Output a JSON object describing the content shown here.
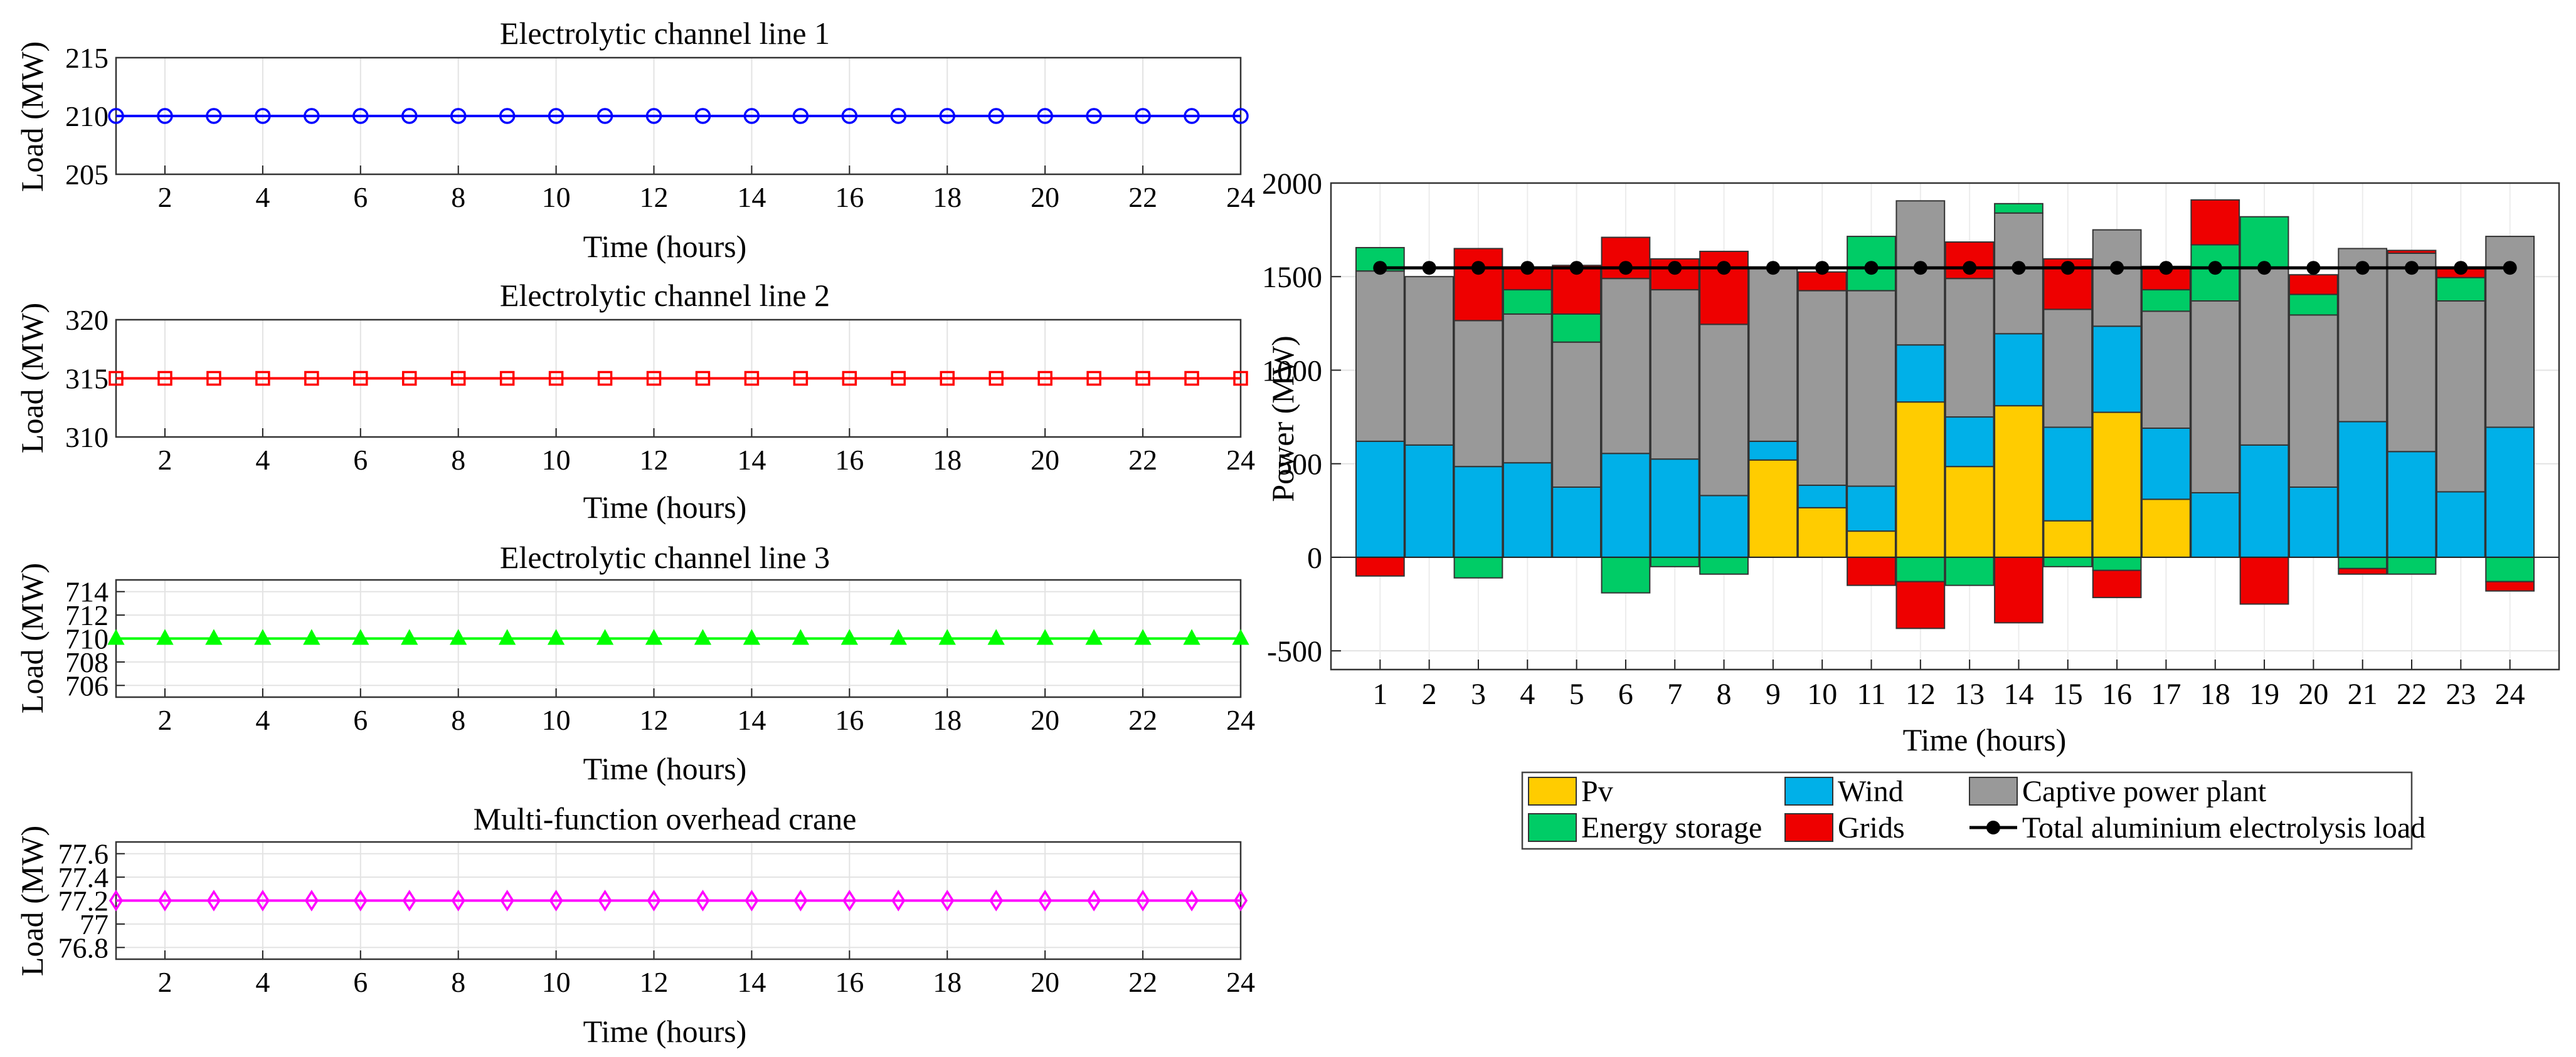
{
  "chart_data": [
    {
      "type": "line",
      "title": "Electrolytic channel line 1",
      "xlabel": "Time (hours)",
      "ylabel": "Load (MW)",
      "xlim": [
        1,
        24
      ],
      "ylim": [
        205,
        215
      ],
      "xticks": [
        "2",
        "4",
        "6",
        "8",
        "10",
        "12",
        "14",
        "16",
        "18",
        "20",
        "22",
        "24"
      ],
      "yticks": [
        "205",
        "210",
        "215"
      ],
      "grid": true,
      "marker": "circle",
      "color": "#0000FF",
      "x": [
        1,
        2,
        3,
        4,
        5,
        6,
        7,
        8,
        9,
        10,
        11,
        12,
        13,
        14,
        15,
        16,
        17,
        18,
        19,
        20,
        21,
        22,
        23,
        24
      ],
      "y": [
        210,
        210,
        210,
        210,
        210,
        210,
        210,
        210,
        210,
        210,
        210,
        210,
        210,
        210,
        210,
        210,
        210,
        210,
        210,
        210,
        210,
        210,
        210,
        210
      ]
    },
    {
      "type": "line",
      "title": "Electrolytic channel line 2",
      "xlabel": "Time (hours)",
      "ylabel": "Load (MW)",
      "xlim": [
        1,
        24
      ],
      "ylim": [
        310,
        320
      ],
      "xticks": [
        "2",
        "4",
        "6",
        "8",
        "10",
        "12",
        "14",
        "16",
        "18",
        "20",
        "22",
        "24"
      ],
      "yticks": [
        "310",
        "315",
        "320"
      ],
      "grid": true,
      "marker": "square",
      "color": "#FF0000",
      "x": [
        1,
        2,
        3,
        4,
        5,
        6,
        7,
        8,
        9,
        10,
        11,
        12,
        13,
        14,
        15,
        16,
        17,
        18,
        19,
        20,
        21,
        22,
        23,
        24
      ],
      "y": [
        315,
        315,
        315,
        315,
        315,
        315,
        315,
        315,
        315,
        315,
        315,
        315,
        315,
        315,
        315,
        315,
        315,
        315,
        315,
        315,
        315,
        315,
        315,
        315
      ]
    },
    {
      "type": "line",
      "title": "Electrolytic channel line 3",
      "xlabel": "Time (hours)",
      "ylabel": "Load (MW)",
      "xlim": [
        1,
        24
      ],
      "ylim": [
        705,
        715
      ],
      "xticks": [
        "2",
        "4",
        "6",
        "8",
        "10",
        "12",
        "14",
        "16",
        "18",
        "20",
        "22",
        "24"
      ],
      "yticks": [
        "706",
        "708",
        "710",
        "712",
        "714"
      ],
      "grid": true,
      "marker": "triangle",
      "color": "#00FF00",
      "x": [
        1,
        2,
        3,
        4,
        5,
        6,
        7,
        8,
        9,
        10,
        11,
        12,
        13,
        14,
        15,
        16,
        17,
        18,
        19,
        20,
        21,
        22,
        23,
        24
      ],
      "y": [
        710,
        710,
        710,
        710,
        710,
        710,
        710,
        710,
        710,
        710,
        710,
        710,
        710,
        710,
        710,
        710,
        710,
        710,
        710,
        710,
        710,
        710,
        710,
        710
      ]
    },
    {
      "type": "line",
      "title": "Multi-function overhead crane",
      "xlabel": "Time (hours)",
      "ylabel": "Load (MW)",
      "xlim": [
        1,
        24
      ],
      "ylim": [
        76.7,
        77.7
      ],
      "xticks": [
        "2",
        "4",
        "6",
        "8",
        "10",
        "12",
        "14",
        "16",
        "18",
        "20",
        "22",
        "24"
      ],
      "yticks": [
        "76.8",
        "77",
        "77.2",
        "77.4",
        "77.6"
      ],
      "grid": true,
      "marker": "diamond",
      "color": "#FF00FF",
      "x": [
        1,
        2,
        3,
        4,
        5,
        6,
        7,
        8,
        9,
        10,
        11,
        12,
        13,
        14,
        15,
        16,
        17,
        18,
        19,
        20,
        21,
        22,
        23,
        24
      ],
      "y": [
        77.2,
        77.2,
        77.2,
        77.2,
        77.2,
        77.2,
        77.2,
        77.2,
        77.2,
        77.2,
        77.2,
        77.2,
        77.2,
        77.2,
        77.2,
        77.2,
        77.2,
        77.2,
        77.2,
        77.2,
        77.2,
        77.2,
        77.2,
        77.2
      ]
    },
    {
      "type": "bar",
      "stacked": true,
      "title": "",
      "xlabel": "Time (hours)",
      "ylabel": "Power (MW)",
      "ylim": [
        -600,
        2000
      ],
      "yticks": [
        "-500",
        "0",
        "500",
        "1000",
        "1500",
        "2000"
      ],
      "grid": true,
      "legend_position": "bottom",
      "categories": [
        "1",
        "2",
        "3",
        "4",
        "5",
        "6",
        "7",
        "8",
        "9",
        "10",
        "11",
        "12",
        "13",
        "14",
        "15",
        "16",
        "17",
        "18",
        "19",
        "20",
        "21",
        "22",
        "23",
        "24"
      ],
      "series": [
        {
          "name": "Pv",
          "color": "#FFCC00",
          "values": [
            0,
            0,
            0,
            0,
            0,
            0,
            0,
            0,
            520,
            265,
            140,
            830,
            485,
            810,
            195,
            775,
            310,
            0,
            0,
            0,
            0,
            0,
            0,
            0
          ]
        },
        {
          "name": "Wind",
          "color": "#00B0E8",
          "values": [
            620,
            600,
            485,
            505,
            375,
            555,
            525,
            330,
            100,
            120,
            240,
            305,
            265,
            385,
            500,
            460,
            380,
            345,
            600,
            375,
            725,
            565,
            350,
            695
          ]
        },
        {
          "name": "Captive power plant",
          "color": "#999999",
          "values": [
            910,
            900,
            780,
            795,
            775,
            935,
            905,
            915,
            930,
            1040,
            1045,
            770,
            740,
            645,
            630,
            515,
            625,
            1025,
            950,
            920,
            925,
            1060,
            1020,
            1020
          ]
        },
        {
          "name": "Energy storage",
          "color": "#00CC66",
          "values": [
            125,
            0,
            -110,
            130,
            150,
            -190,
            -50,
            -90,
            0,
            0,
            290,
            -130,
            -150,
            50,
            -50,
            -70,
            115,
            300,
            270,
            110,
            -60,
            -90,
            125,
            -130
          ]
        },
        {
          "name": "Grids",
          "color": "#EE0000",
          "values": [
            -100,
            0,
            385,
            120,
            260,
            220,
            165,
            390,
            0,
            100,
            -150,
            -250,
            195,
            -350,
            270,
            -145,
            125,
            240,
            -250,
            105,
            -30,
            15,
            55,
            -50
          ]
        }
      ],
      "line_series": {
        "name": "Total aluminium electrolysis load",
        "color": "#000000",
        "values": [
          1547,
          1547,
          1547,
          1547,
          1547,
          1547,
          1547,
          1547,
          1547,
          1547,
          1547,
          1547,
          1547,
          1547,
          1547,
          1547,
          1547,
          1547,
          1547,
          1547,
          1547,
          1547,
          1547,
          1547
        ]
      }
    }
  ]
}
